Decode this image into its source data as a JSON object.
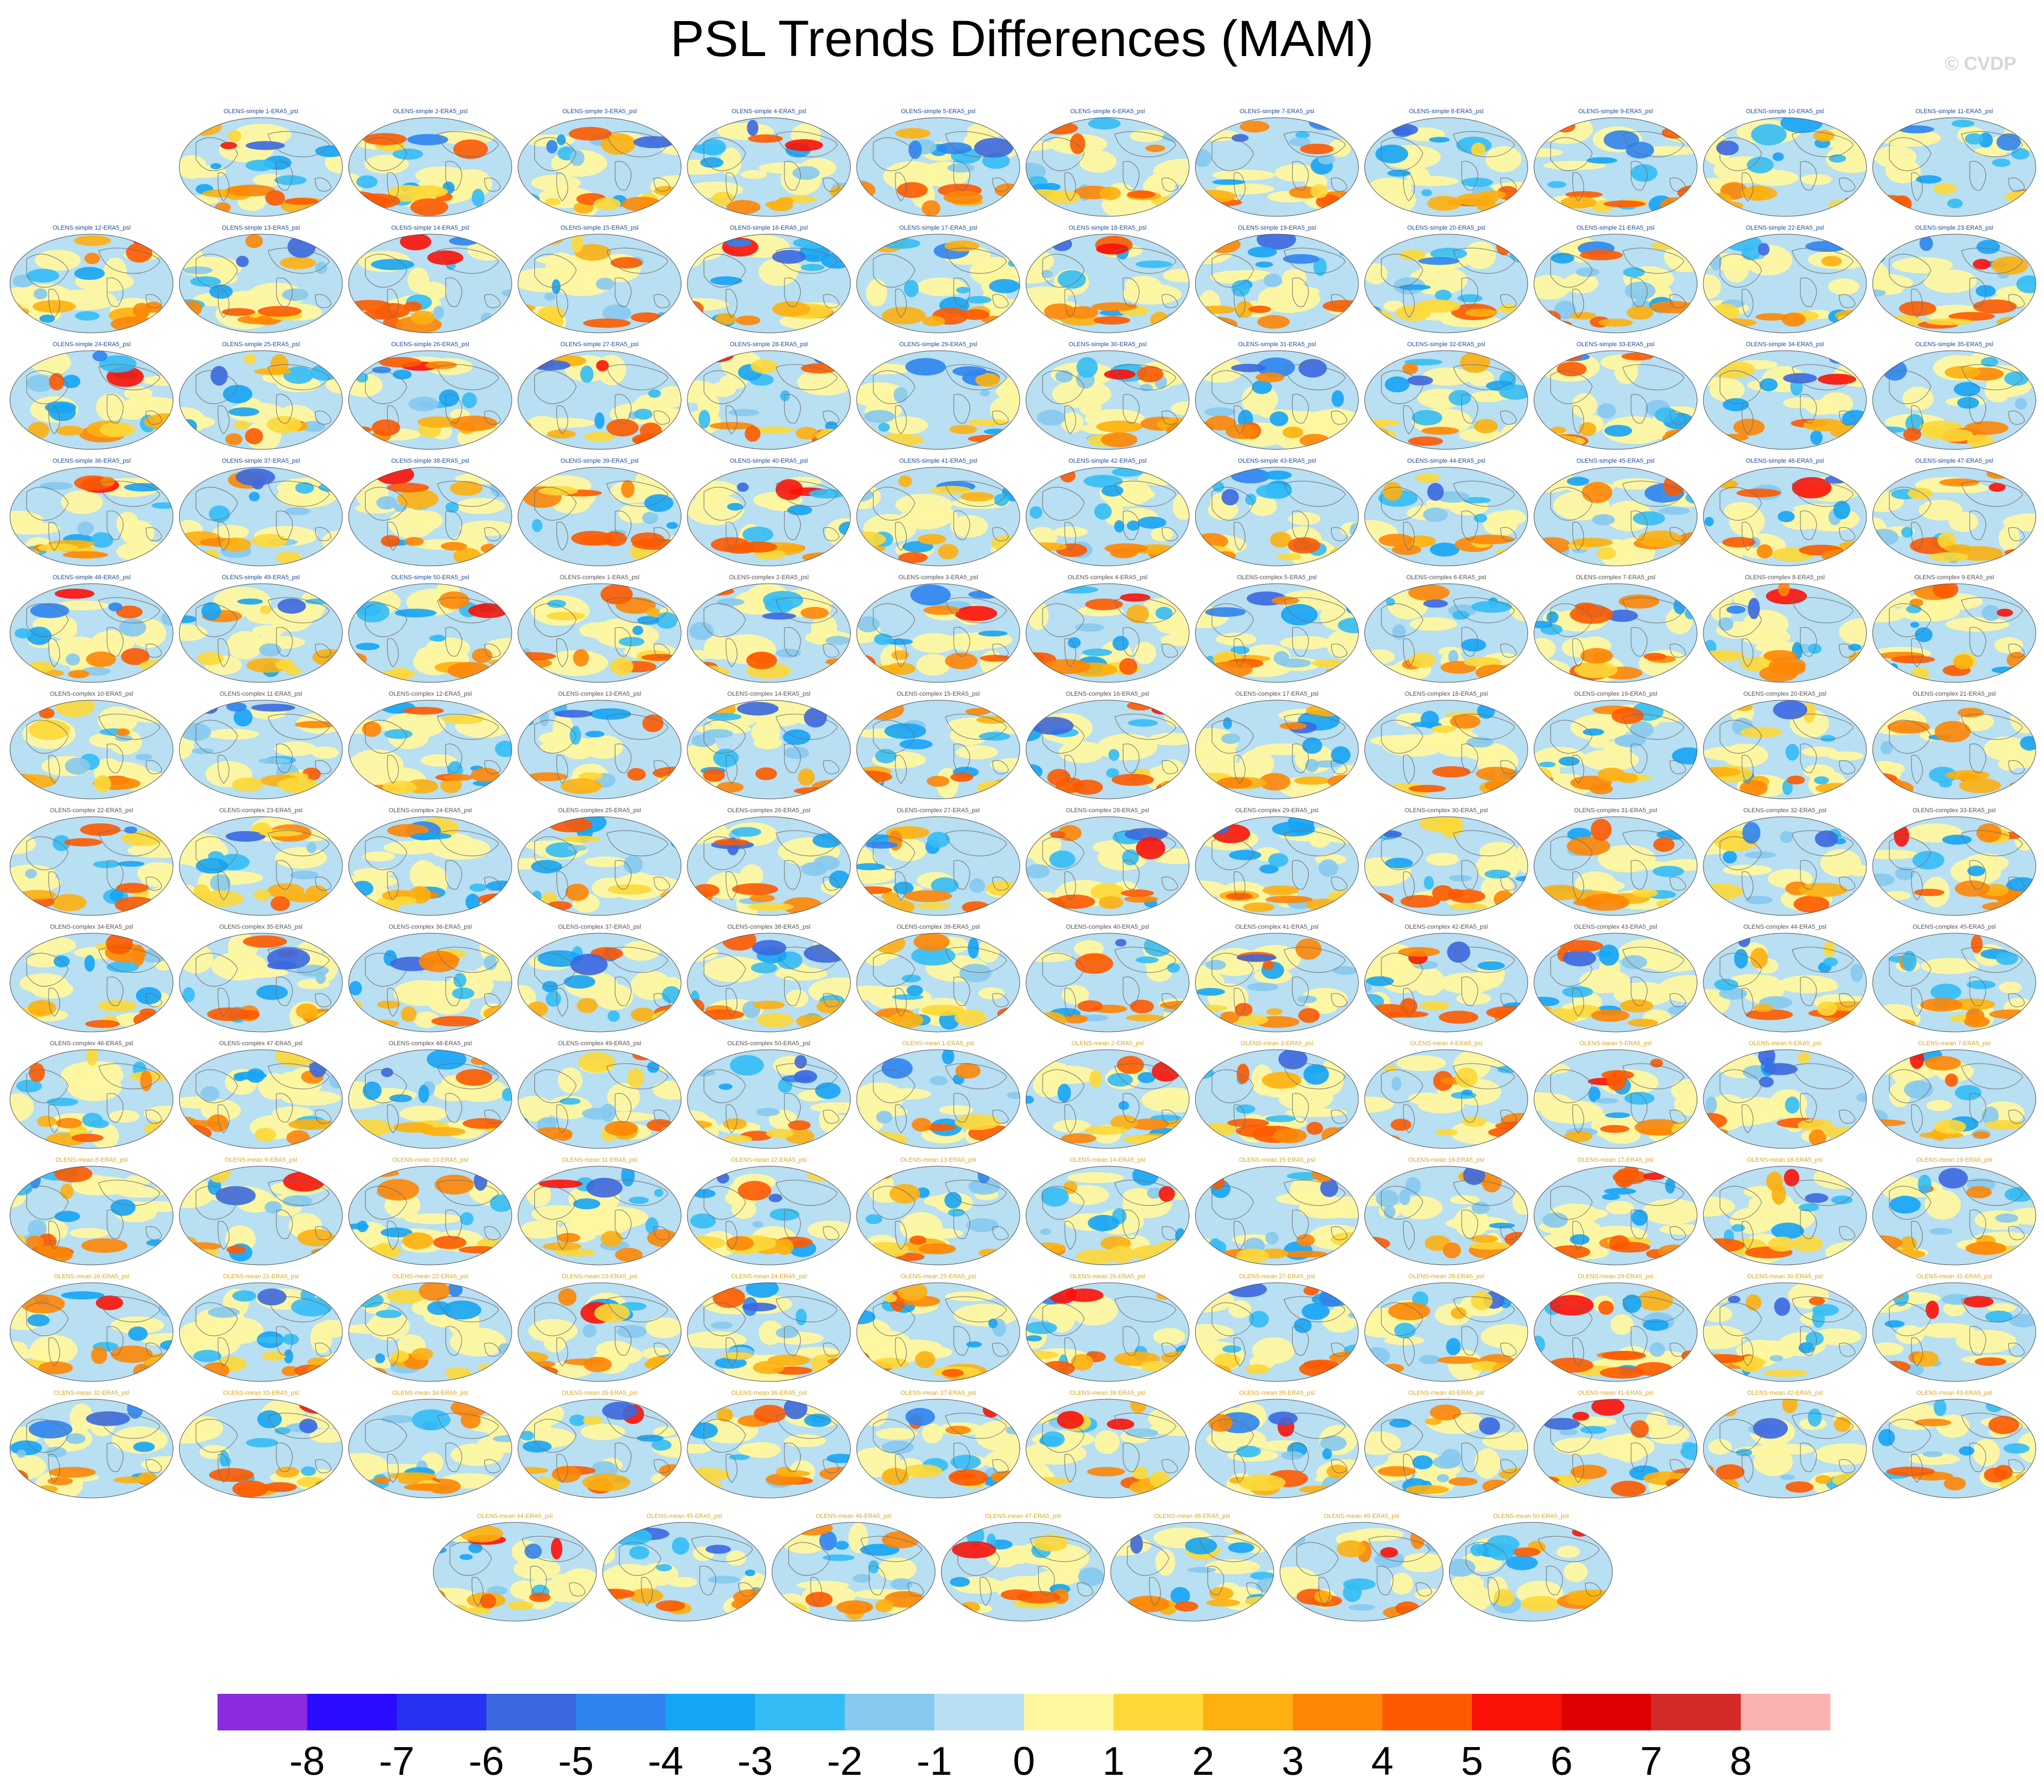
{
  "title": "PSL Trends Differences (MAM)",
  "credit": "© CVDP",
  "chart_data": {
    "type": "heatmap",
    "title": "PSL Trends Differences (MAM)",
    "variable": "psl",
    "season": "MAM",
    "reference": "ERA5",
    "panel_groups": [
      {
        "name": "OLENS-simple",
        "count": 50,
        "label_color": "#1f4e99"
      },
      {
        "name": "OLENS-complex",
        "count": 50,
        "label_color": "#555555"
      },
      {
        "name": "OLENS-mean",
        "count": 50,
        "label_color": "#d9a820"
      }
    ],
    "panel_label_template": "{group} {n}-ERA5_psl",
    "rows": [
      11,
      12,
      12,
      12,
      12,
      12,
      12,
      12,
      12,
      12,
      12,
      12,
      7
    ],
    "colorbar": {
      "ticks": [
        "-8",
        "-7",
        "-6",
        "-5",
        "-4",
        "-3",
        "-2",
        "-1",
        "0",
        "1",
        "2",
        "3",
        "4",
        "5",
        "6",
        "7",
        "8"
      ],
      "colors": [
        "#8a2be2",
        "#2a0dff",
        "#2532f0",
        "#3b68e0",
        "#2f84f0",
        "#16a4f5",
        "#34bdf5",
        "#86c9ee",
        "#b8dff2",
        "#fef7a0",
        "#fdd838",
        "#fdb010",
        "#fd8606",
        "#fd5a00",
        "#fb1208",
        "#dd0000",
        "#d42a2a",
        "#fdb2b2"
      ]
    }
  }
}
